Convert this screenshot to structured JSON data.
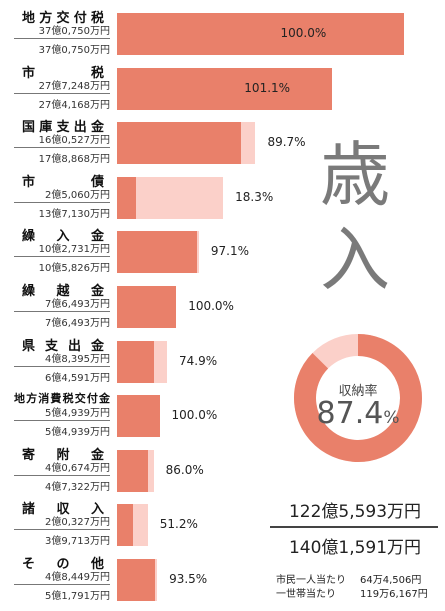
{
  "chart_data": {
    "type": "bar",
    "categories": [
      "地方交付税",
      "市税",
      "国庫支出金",
      "市債",
      "繰入金",
      "繰越金",
      "県支出金",
      "地方消費税交付金",
      "寄附金",
      "諸収入",
      "その他"
    ],
    "category_display": [
      "地方交付税",
      "市　税",
      "国庫支出金",
      "市　債",
      "繰入金",
      "繰越金",
      "県支出金",
      "地方消費税交付金",
      "寄附金",
      "諸収入",
      "その他"
    ],
    "budget_label": [
      "37億0,750万円",
      "27億7,248万円",
      "16億0,527万円",
      "2億5,060万円",
      "10億2,731万円",
      "7億6,493万円",
      "4億8,395万円",
      "5億4,939万円",
      "4億0,674万円",
      "2億0,327万円",
      "4億8,449万円"
    ],
    "actual_label": [
      "37億0,750万円",
      "27億4,168万円",
      "17億8,868万円",
      "13億7,130万円",
      "10億5,826万円",
      "7億6,493万円",
      "6億4,591万円",
      "5億4,939万円",
      "4億7,322万円",
      "3億9,713万円",
      "5億1,791万円"
    ],
    "budget_values": [
      370750,
      277248,
      160527,
      25060,
      102731,
      76493,
      48395,
      54939,
      40674,
      20327,
      48449
    ],
    "actual_values": [
      370750,
      274168,
      178868,
      137130,
      105826,
      76493,
      64591,
      54939,
      47322,
      39713,
      51791
    ],
    "rates": [
      "100.0%",
      "101.1%",
      "89.7%",
      "18.3%",
      "97.1%",
      "100.0%",
      "74.9%",
      "100.0%",
      "86.0%",
      "51.2%",
      "93.5%"
    ],
    "rate_values": [
      100.0,
      101.1,
      89.7,
      18.3,
      97.1,
      100.0,
      74.9,
      100.0,
      86.0,
      51.2,
      93.5
    ],
    "colors": {
      "actual": "#e9806a",
      "budget": "#fbd0c9",
      "donut_rest": "#fbd0c9"
    }
  },
  "title_chars": [
    "歳",
    "入"
  ],
  "donut": {
    "label": "収納率",
    "value": 87.4,
    "value_text": "87.4",
    "unit": "%"
  },
  "totals": {
    "budget": "122億5,593万円",
    "actual": "140億1,591万円"
  },
  "per_capita": [
    {
      "label": "市民一人当たり",
      "value": "64万4,506円"
    },
    {
      "label": "一世帯当たり",
      "value": "119万6,167円"
    }
  ]
}
